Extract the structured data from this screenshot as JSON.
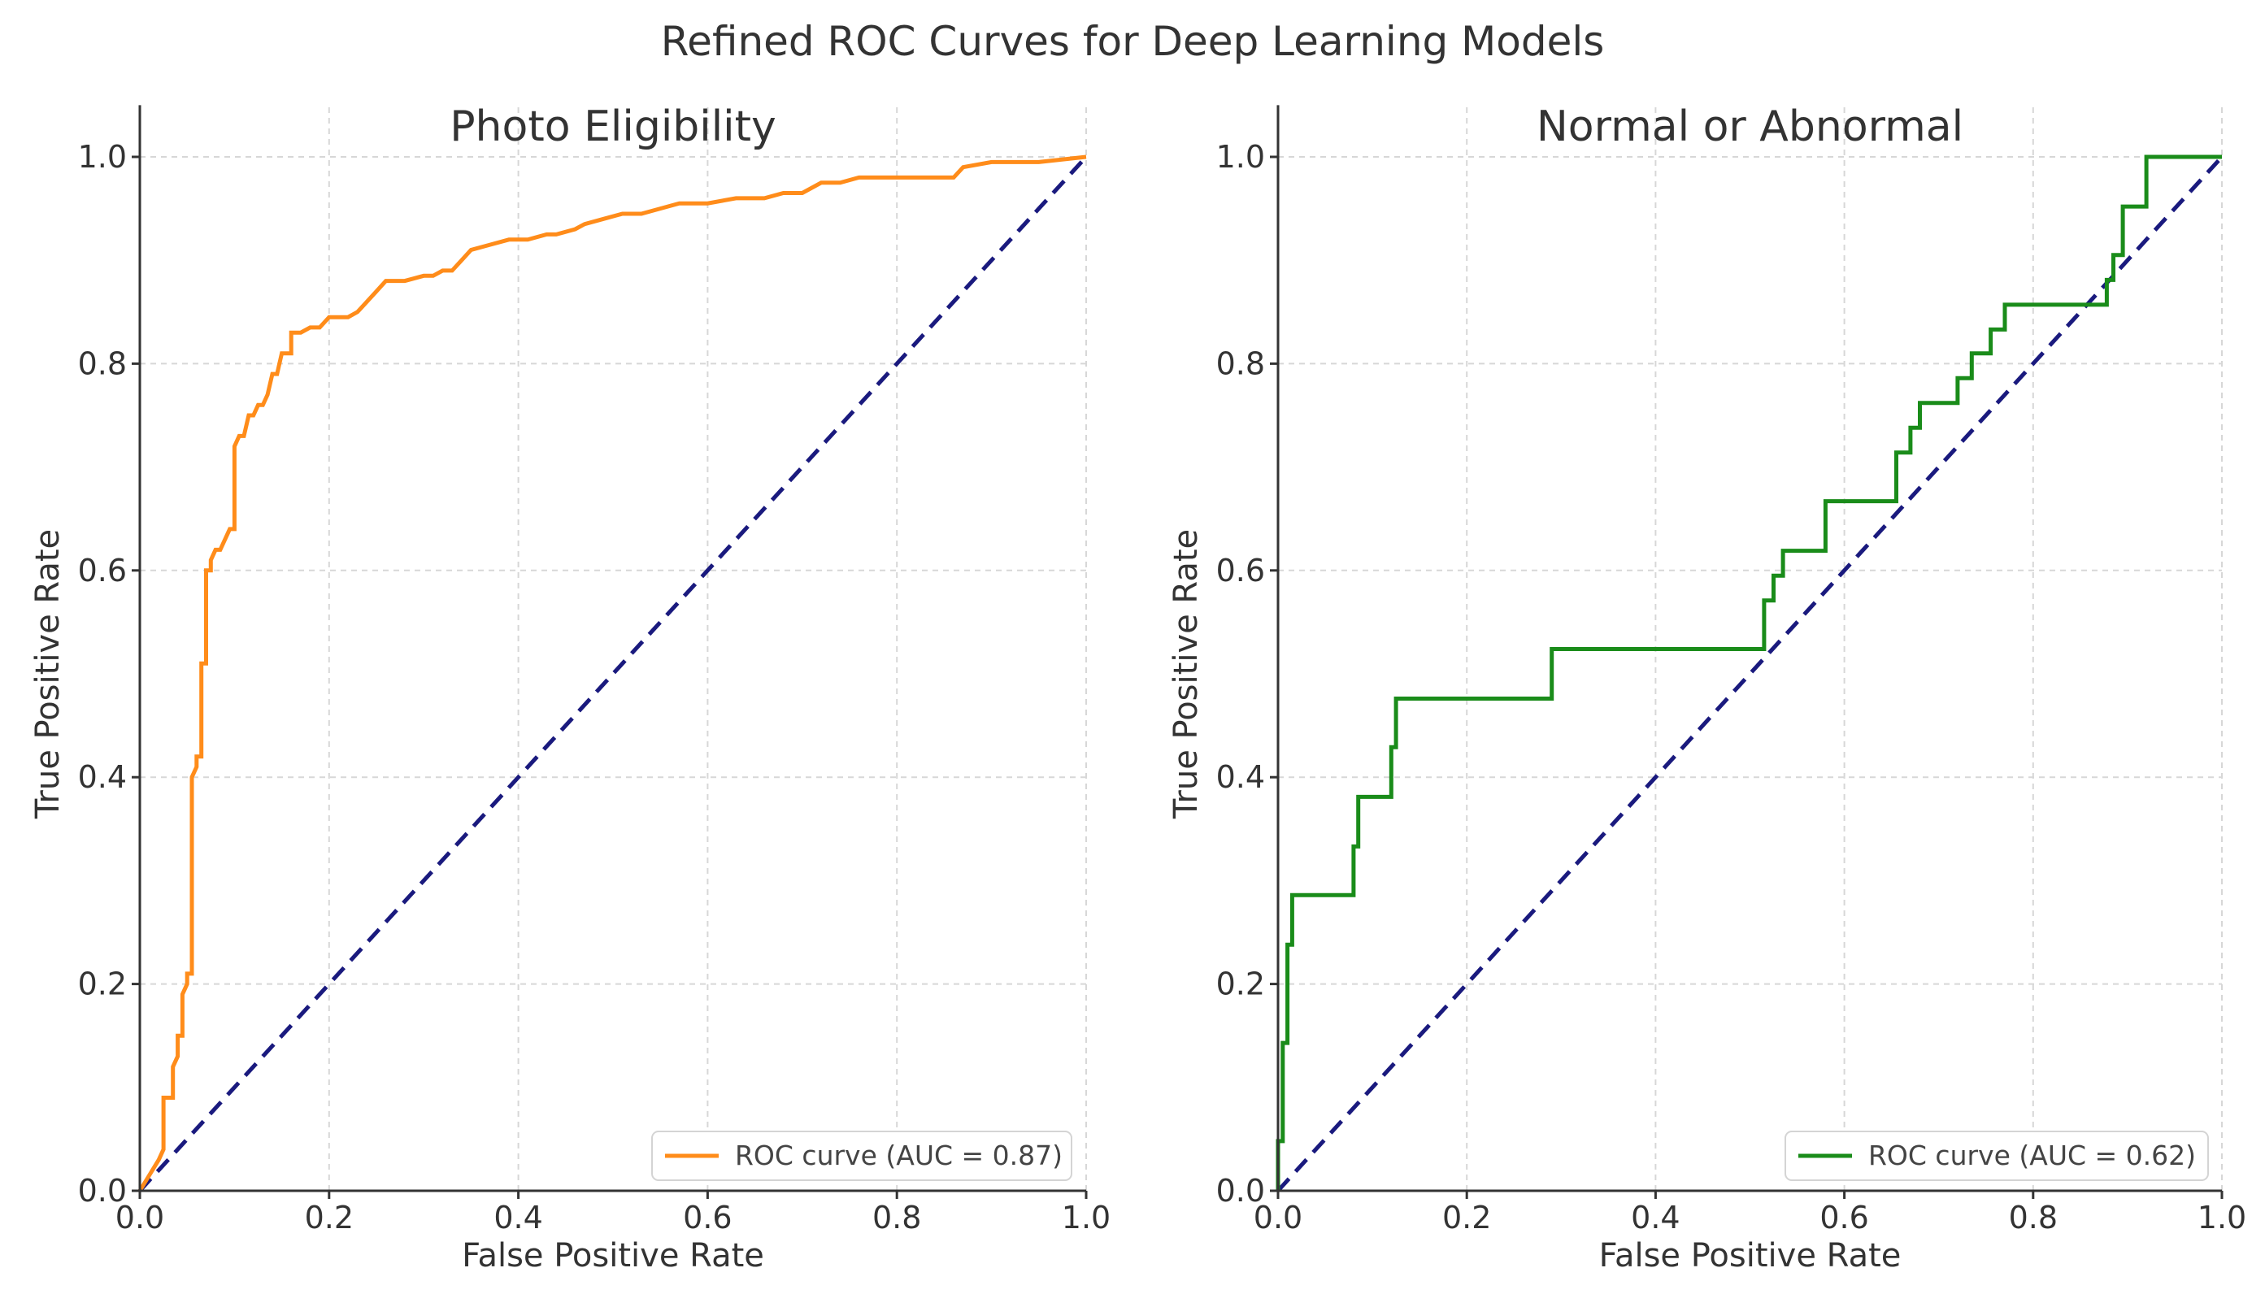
{
  "figure_title": "Refined ROC Curves for Deep Learning Models",
  "colors": {
    "diagonal": "#1a1a7e",
    "grid": "#d7d7d7",
    "axis": "#333333"
  },
  "chart_data": [
    {
      "type": "line",
      "title": "Photo Eligibility",
      "xlabel": "False Positive Rate",
      "ylabel": "True Positive Rate",
      "xlim": [
        0,
        1
      ],
      "ylim": [
        0,
        1
      ],
      "xticks": [
        0,
        0.2,
        0.4,
        0.6,
        0.8,
        1.0
      ],
      "xtick_labels": [
        "0.0",
        "0.2",
        "0.4",
        "0.6",
        "0.8",
        "1.0"
      ],
      "yticks": [
        0,
        0.2,
        0.4,
        0.6,
        0.8,
        1.0
      ],
      "ytick_labels": [
        "0.0",
        "0.2",
        "0.4",
        "0.6",
        "0.8",
        "1.0"
      ],
      "grid": true,
      "legend_position": "lower-right",
      "series": [
        {
          "name": "ROC curve (AUC = 0.87)",
          "color": "#ff8c1a",
          "x": [
            0,
            0.02,
            0.025,
            0.025,
            0.035,
            0.035,
            0.04,
            0.04,
            0.045,
            0.045,
            0.05,
            0.05,
            0.055,
            0.055,
            0.06,
            0.06,
            0.065,
            0.065,
            0.07,
            0.07,
            0.075,
            0.075,
            0.08,
            0.085,
            0.09,
            0.095,
            0.1,
            0.1,
            0.105,
            0.11,
            0.115,
            0.12,
            0.125,
            0.13,
            0.135,
            0.14,
            0.145,
            0.15,
            0.16,
            0.16,
            0.17,
            0.18,
            0.19,
            0.2,
            0.22,
            0.23,
            0.24,
            0.25,
            0.26,
            0.28,
            0.3,
            0.31,
            0.32,
            0.33,
            0.34,
            0.35,
            0.37,
            0.39,
            0.41,
            0.43,
            0.44,
            0.46,
            0.47,
            0.49,
            0.51,
            0.53,
            0.55,
            0.57,
            0.6,
            0.63,
            0.66,
            0.68,
            0.7,
            0.72,
            0.74,
            0.76,
            0.79,
            0.82,
            0.86,
            0.87,
            0.9,
            0.95,
            1.0
          ],
          "y": [
            0,
            0.03,
            0.04,
            0.09,
            0.09,
            0.12,
            0.13,
            0.15,
            0.15,
            0.19,
            0.2,
            0.21,
            0.21,
            0.4,
            0.41,
            0.42,
            0.42,
            0.51,
            0.51,
            0.6,
            0.6,
            0.61,
            0.62,
            0.62,
            0.63,
            0.64,
            0.64,
            0.72,
            0.73,
            0.73,
            0.75,
            0.75,
            0.76,
            0.76,
            0.77,
            0.79,
            0.79,
            0.81,
            0.81,
            0.83,
            0.83,
            0.835,
            0.835,
            0.845,
            0.845,
            0.85,
            0.86,
            0.87,
            0.88,
            0.88,
            0.885,
            0.885,
            0.89,
            0.89,
            0.9,
            0.91,
            0.915,
            0.92,
            0.92,
            0.925,
            0.925,
            0.93,
            0.935,
            0.94,
            0.945,
            0.945,
            0.95,
            0.955,
            0.955,
            0.96,
            0.96,
            0.965,
            0.965,
            0.975,
            0.975,
            0.98,
            0.98,
            0.98,
            0.98,
            0.99,
            0.995,
            0.995,
            1.0
          ]
        }
      ]
    },
    {
      "type": "line",
      "title": "Normal or Abnormal",
      "xlabel": "False Positive Rate",
      "ylabel": "True Positive Rate",
      "xlim": [
        0,
        1
      ],
      "ylim": [
        0,
        1
      ],
      "xticks": [
        0,
        0.2,
        0.4,
        0.6,
        0.8,
        1.0
      ],
      "xtick_labels": [
        "0.0",
        "0.2",
        "0.4",
        "0.6",
        "0.8",
        "1.0"
      ],
      "yticks": [
        0,
        0.2,
        0.4,
        0.6,
        0.8,
        1.0
      ],
      "ytick_labels": [
        "0.0",
        "0.2",
        "0.4",
        "0.6",
        "0.8",
        "1.0"
      ],
      "grid": true,
      "legend_position": "lower-right",
      "series": [
        {
          "name": "ROC curve (AUC = 0.62)",
          "color": "#1a8c1a",
          "x": [
            0,
            0,
            0.005,
            0.005,
            0.01,
            0.01,
            0.015,
            0.015,
            0.08,
            0.08,
            0.085,
            0.085,
            0.12,
            0.12,
            0.125,
            0.125,
            0.29,
            0.29,
            0.515,
            0.515,
            0.525,
            0.525,
            0.535,
            0.535,
            0.58,
            0.58,
            0.655,
            0.655,
            0.67,
            0.67,
            0.68,
            0.68,
            0.72,
            0.72,
            0.735,
            0.735,
            0.755,
            0.755,
            0.77,
            0.77,
            0.878,
            0.878,
            0.885,
            0.885,
            0.895,
            0.895,
            0.92,
            0.92,
            1.0
          ],
          "y": [
            0,
            0.048,
            0.048,
            0.143,
            0.143,
            0.238,
            0.238,
            0.286,
            0.286,
            0.333,
            0.333,
            0.381,
            0.381,
            0.429,
            0.429,
            0.476,
            0.476,
            0.524,
            0.524,
            0.571,
            0.571,
            0.595,
            0.595,
            0.619,
            0.619,
            0.667,
            0.667,
            0.714,
            0.714,
            0.738,
            0.738,
            0.762,
            0.762,
            0.786,
            0.786,
            0.81,
            0.81,
            0.833,
            0.833,
            0.857,
            0.857,
            0.881,
            0.881,
            0.905,
            0.905,
            0.952,
            0.952,
            1.0,
            1.0
          ]
        }
      ]
    }
  ]
}
